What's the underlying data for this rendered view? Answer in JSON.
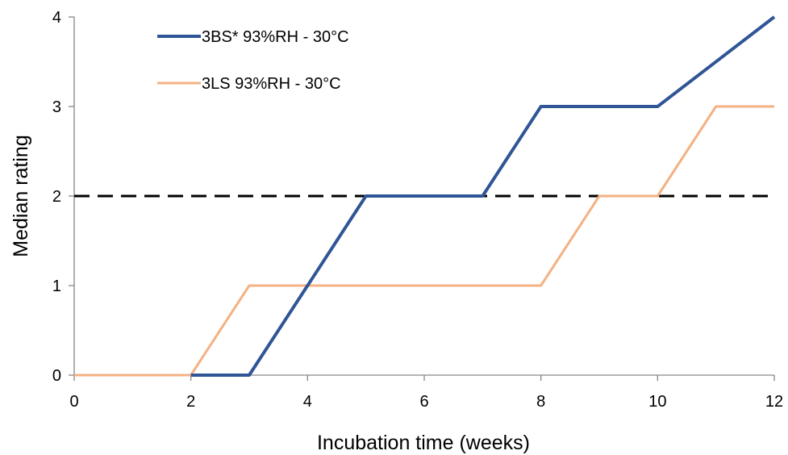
{
  "chart_data": {
    "type": "line",
    "xlabel": "Incubation time (weeks)",
    "ylabel": "Median rating",
    "xlim": [
      0,
      12
    ],
    "ylim": [
      0,
      4
    ],
    "xticks": [
      0,
      2,
      4,
      6,
      8,
      10,
      12
    ],
    "yticks": [
      0,
      1,
      2,
      3,
      4
    ],
    "grid": false,
    "legend_position": "top-left",
    "series": [
      {
        "name": "3BS* 93%RH - 30°C",
        "color": "#2f5597",
        "x": [
          2,
          3,
          4,
          5,
          7,
          8,
          10,
          12
        ],
        "y": [
          0,
          0,
          1,
          2,
          2,
          3,
          3,
          4
        ]
      },
      {
        "name": "3LS 93%RH - 30°C",
        "color": "#f4b183",
        "x": [
          0,
          2,
          3,
          4,
          8,
          9,
          10,
          11,
          12
        ],
        "y": [
          0,
          0,
          1,
          1,
          1,
          2,
          2,
          3,
          3
        ]
      }
    ],
    "reference_line": {
      "y": 2,
      "style": "dashed",
      "color": "#000000"
    }
  }
}
